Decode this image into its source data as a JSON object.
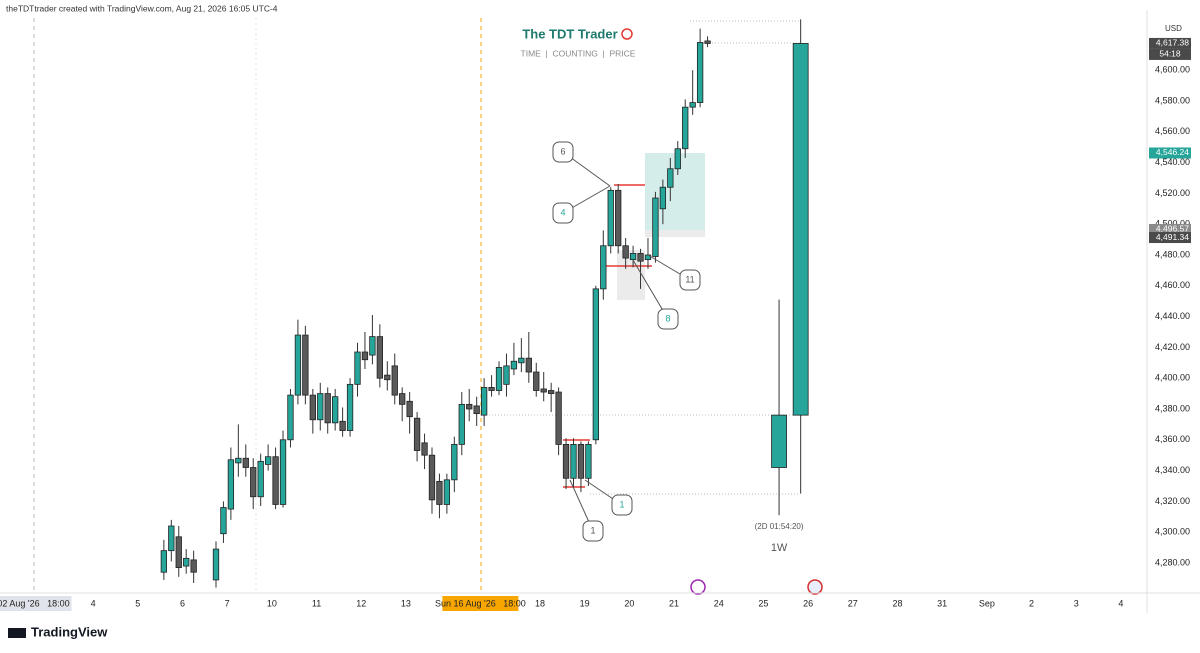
{
  "header": {
    "credit": "theTDTtrader created with TradingView.com, Aug 21, 2026 16:05 UTC-4",
    "logo": "TradingView"
  },
  "chart_data": {
    "type": "candlestick",
    "title": "The TDT Trader",
    "subtitle": "TIME  |  COUNTING  |  PRICE",
    "currency": "USD",
    "up_color": "#26a69a",
    "down_color": "#5a5a5a",
    "grid": false,
    "xlim": [
      0,
      154
    ],
    "ylim": [
      4260.5,
      4639.1
    ],
    "xticks": [
      {
        "value": 4.5,
        "label": "02 Aug '26   18:00"
      },
      12.5,
      18.5,
      24.5,
      30.5,
      36.5,
      42.5,
      48.5,
      54.5,
      {
        "value": 64.5,
        "label": "Sun 16 Aug '26   18:00"
      },
      72.5,
      78.5,
      84.5,
      90.5,
      96.5,
      102.5,
      108.5,
      114.5,
      120.5,
      126.5,
      {
        "value": 132.5,
        "label": "Sep"
      },
      138.5,
      144.5,
      150.5
    ],
    "xtick_labels": [
      "02 Aug '26   18:00",
      "4",
      "5",
      "6",
      "7",
      "10",
      "11",
      "12",
      "13",
      "Sun 16 Aug '26   18:00",
      "18",
      "19",
      "20",
      "21",
      "24",
      "25",
      "26",
      "27",
      "28",
      "31",
      "Sep",
      "2",
      "3",
      "4"
    ],
    "yticks": [
      {
        "value": 4280,
        "label": "4,280.00"
      },
      {
        "value": 4300,
        "label": "4,300.00"
      },
      {
        "value": 4320,
        "label": "4,320.00"
      },
      {
        "value": 4340,
        "label": "4,340.00"
      },
      {
        "value": 4360,
        "label": "4,360.00"
      },
      {
        "value": 4380,
        "label": "4,380.00"
      },
      {
        "value": 4400,
        "label": "4,400.00"
      },
      {
        "value": 4420,
        "label": "4,420.00"
      },
      {
        "value": 4440,
        "label": "4,440.00"
      },
      {
        "value": 4460,
        "label": "4,460.00"
      },
      {
        "value": 4480,
        "label": "4,480.00"
      },
      {
        "value": 4500,
        "label": "4,500.00"
      },
      {
        "value": 4520,
        "label": "4,520.00"
      },
      {
        "value": 4540,
        "label": "4,540.00"
      },
      {
        "value": 4560,
        "label": "4,560.00"
      },
      {
        "value": 4580,
        "label": "4,580.00"
      },
      {
        "value": 4600,
        "label": "4,600.00"
      }
    ],
    "price_labels": [
      {
        "value": 4617.38,
        "label": "4,617.38",
        "color": "#4a4a4a"
      },
      {
        "value": 4546.24,
        "label": "4,546.24",
        "color": "#26a69a"
      },
      {
        "value": 4496.57,
        "label": "4,496.57",
        "color": "#8a8a8a"
      },
      {
        "value": 4491.34,
        "label": "4,491.34",
        "color": "#4a4a4a"
      }
    ],
    "countdown": "54:18",
    "candles": {
      "x": [
        22,
        23,
        24,
        25,
        26,
        29,
        30,
        31,
        32,
        33,
        34,
        35,
        36,
        37,
        38,
        39,
        40,
        41,
        42,
        43,
        44,
        45,
        46,
        47,
        48,
        49,
        50,
        51,
        52,
        53,
        54,
        55,
        56,
        57,
        58,
        59,
        60,
        61,
        62,
        63,
        64,
        65,
        66,
        67,
        68,
        69,
        70,
        71,
        72,
        73,
        74,
        75,
        76,
        77,
        78,
        79,
        80,
        81,
        82,
        83,
        84,
        85,
        86,
        87,
        88,
        89,
        90,
        91,
        92,
        93,
        94,
        95
      ],
      "open": [
        4274,
        4288,
        4297,
        4278,
        4282,
        4269,
        4299,
        4315,
        4345,
        4348,
        4342,
        4323,
        4344,
        4349,
        4318,
        4360,
        4389,
        4428,
        4389,
        4373,
        4390,
        4371,
        4372,
        4366,
        4396,
        4417,
        4415,
        4427,
        4402,
        4408,
        4390,
        4385,
        4374,
        4358,
        4350,
        4333,
        4318,
        4334,
        4357,
        4383,
        4382,
        4376,
        4394,
        4392,
        4396,
        4406,
        4410,
        4413,
        4404,
        4393,
        4392,
        4391,
        4357,
        4335,
        4357,
        4335,
        4360,
        4458,
        4486,
        4522,
        4486,
        4477,
        4481,
        4477,
        4479,
        4510,
        4524,
        4536,
        4549,
        4576,
        4579,
        4619
      ],
      "high": [
        4295,
        4308,
        4304,
        4289,
        4288,
        4294,
        4320,
        4355,
        4370,
        4357,
        4348,
        4351,
        4357,
        4355,
        4366,
        4393,
        4438,
        4434,
        4393,
        4397,
        4394,
        4393,
        4381,
        4400,
        4423,
        4430,
        4441,
        4435,
        4411,
        4416,
        4394,
        4391,
        4378,
        4364,
        4355,
        4338,
        4338,
        4362,
        4391,
        4393,
        4388,
        4400,
        4402,
        4411,
        4416,
        4423,
        4426,
        4430,
        4410,
        4404,
        4397,
        4394,
        4361,
        4361,
        4359,
        4359,
        4460,
        4496,
        4524,
        4526,
        4491,
        4486,
        4484,
        4491,
        4521,
        4529,
        4543,
        4554,
        4581,
        4600,
        4627,
        4622
      ],
      "low": [
        4269,
        4281,
        4271,
        4273,
        4267,
        4264,
        4293,
        4308,
        4336,
        4336,
        4315,
        4317,
        4340,
        4315,
        4316,
        4355,
        4383,
        4383,
        4364,
        4366,
        4364,
        4366,
        4362,
        4362,
        4388,
        4406,
        4409,
        4394,
        4392,
        4383,
        4372,
        4364,
        4346,
        4341,
        4312,
        4309,
        4312,
        4326,
        4350,
        4372,
        4369,
        4369,
        4388,
        4389,
        4388,
        4402,
        4404,
        4397,
        4388,
        4385,
        4378,
        4350,
        4328,
        4329,
        4326,
        4330,
        4357,
        4451,
        4481,
        4481,
        4471,
        4472,
        4458,
        4471,
        4475,
        4500,
        4515,
        4532,
        4543,
        4571,
        4576,
        4615
      ],
      "close": [
        4288,
        4304,
        4277,
        4283,
        4274,
        4289,
        4316,
        4347,
        4348,
        4342,
        4323,
        4346,
        4349,
        4318,
        4360,
        4389,
        4428,
        4389,
        4373,
        4390,
        4371,
        4388,
        4366,
        4396,
        4417,
        4412,
        4427,
        4400,
        4399,
        4389,
        4383,
        4375,
        4353,
        4350,
        4321,
        4318,
        4334,
        4357,
        4383,
        4380,
        4377,
        4394,
        4392,
        4407,
        4408,
        4411,
        4413,
        4404,
        4392,
        4391,
        4390,
        4357,
        4335,
        4357,
        4335,
        4357,
        4458,
        4486,
        4522,
        4486,
        4478,
        4481,
        4476,
        4480,
        4517,
        4524,
        4536,
        4549,
        4576,
        4579,
        4618,
        4617.38
      ]
    },
    "weekly": {
      "label": "1W",
      "countdown": "(2D 01:54:20)",
      "x": [
        104.6,
        107.5
      ],
      "open": [
        4342,
        4376
      ],
      "high": [
        4451,
        4633
      ],
      "low": [
        4311,
        4325
      ],
      "close": [
        4376,
        4617.38
      ]
    },
    "annotations": [
      "6",
      "4",
      "11",
      "8",
      "1",
      "1"
    ]
  }
}
